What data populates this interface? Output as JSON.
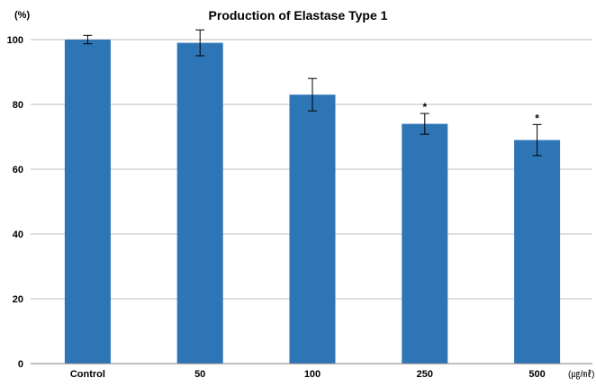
{
  "chart_data": {
    "type": "bar",
    "title": "Production of Elastase Type 1",
    "ylabel": "(%)",
    "xunit": "(㎍/㎖)",
    "categories": [
      "Control",
      "50",
      "100",
      "250",
      "500"
    ],
    "values": [
      100,
      99,
      83,
      74,
      69
    ],
    "errors": [
      1.3,
      4,
      5,
      3.2,
      4.8
    ],
    "significance": [
      "",
      "",
      "",
      "*",
      "*"
    ],
    "ylim": [
      0,
      100
    ],
    "yticks": [
      0,
      20,
      40,
      60,
      80,
      100
    ],
    "grid": true,
    "legend": "none",
    "bar_color": "#2E75B6"
  }
}
